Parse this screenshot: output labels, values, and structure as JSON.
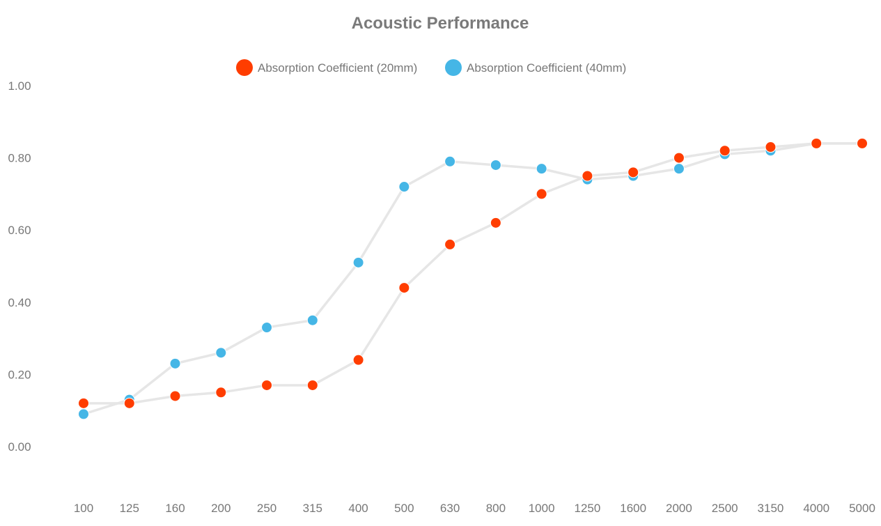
{
  "chart_data": {
    "type": "line",
    "title": "Acoustic Performance",
    "xlabel": "",
    "ylabel": "",
    "ylim": [
      0,
      1.0
    ],
    "yticks": [
      "0.00",
      "0.20",
      "0.40",
      "0.60",
      "0.80",
      "1.00"
    ],
    "ytick_values": [
      0,
      0.2,
      0.4,
      0.6,
      0.8,
      1.0
    ],
    "categories": [
      "100",
      "125",
      "160",
      "200",
      "250",
      "315",
      "400",
      "500",
      "630",
      "800",
      "1000",
      "1250",
      "1600",
      "2000",
      "2500",
      "3150",
      "4000",
      "5000"
    ],
    "legend_position": "top-center",
    "grid": false,
    "line_color": "#e6e6e6",
    "series": [
      {
        "name": "Absorption Coefficient (20mm)",
        "color": "#ff3d00",
        "values": [
          0.12,
          0.12,
          0.14,
          0.15,
          0.17,
          0.17,
          0.24,
          0.44,
          0.56,
          0.62,
          0.7,
          0.75,
          0.76,
          0.8,
          0.82,
          0.83,
          0.84,
          0.84
        ]
      },
      {
        "name": "Absorption Coefficient (40mm)",
        "color": "#45b6e6",
        "values": [
          0.09,
          0.13,
          0.23,
          0.26,
          0.33,
          0.35,
          0.51,
          0.72,
          0.79,
          0.78,
          0.77,
          0.74,
          0.75,
          0.77,
          0.81,
          0.82,
          0.84,
          0.84
        ]
      }
    ]
  }
}
